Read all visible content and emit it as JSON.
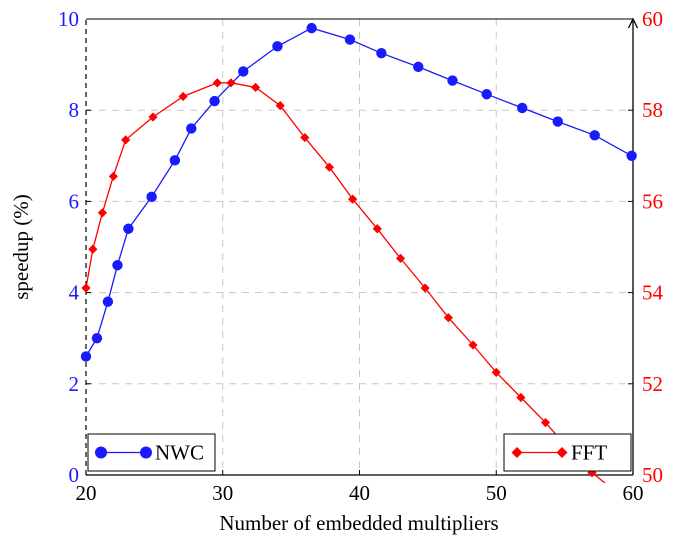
{
  "chart_data": {
    "type": "line",
    "xlabel": "Number of embedded multipliers",
    "ylabel_left": "speedup (%)",
    "ylabel_right": "",
    "xlim": [
      20,
      60
    ],
    "ylim_left": [
      0,
      10
    ],
    "ylim_right": [
      50,
      60
    ],
    "x_ticks": [
      20,
      30,
      40,
      50,
      60
    ],
    "y_ticks_left": [
      0,
      2,
      4,
      6,
      8,
      10
    ],
    "y_ticks_right": [
      50,
      52,
      54,
      56,
      58,
      60
    ],
    "grid": true,
    "colors": {
      "left_axis": "#1a1aff",
      "right_axis": "#ff0000"
    },
    "series": [
      {
        "name": "NWC",
        "axis": "left",
        "color": "#1a1aff",
        "marker": "circle",
        "legend": "bottom-left",
        "x": [
          20,
          20.8,
          21.6,
          22.3,
          23.1,
          24.8,
          26.5,
          27.7,
          29.4,
          31.5,
          34.0,
          36.5,
          39.3,
          41.6,
          44.3,
          46.8,
          49.3,
          51.9,
          54.5,
          57.2,
          59.9
        ],
        "y": [
          2.6,
          3.0,
          3.8,
          4.6,
          5.4,
          6.1,
          6.9,
          7.6,
          8.2,
          8.85,
          9.4,
          9.8,
          9.55,
          9.25,
          8.95,
          8.65,
          8.35,
          8.05,
          7.75,
          7.45,
          7.0
        ]
      },
      {
        "name": "FFT",
        "axis": "right",
        "color": "#ff0000",
        "marker": "diamond",
        "legend": "bottom-right",
        "x": [
          20,
          20.5,
          21.2,
          22.0,
          22.9,
          24.9,
          27.1,
          29.6,
          30.6,
          32.4,
          34.2,
          36.0,
          37.8,
          39.5,
          41.3,
          43.0,
          44.8,
          46.5,
          48.3,
          50.0,
          51.8,
          53.6,
          55.2,
          57.0,
          59.3
        ],
        "y": [
          54.1,
          54.95,
          55.75,
          56.55,
          57.35,
          57.85,
          58.3,
          58.6,
          58.6,
          58.5,
          58.1,
          57.4,
          56.75,
          56.05,
          55.4,
          54.75,
          54.1,
          53.45,
          52.85,
          52.25,
          51.7,
          51.15,
          50.6,
          50.05,
          49.5
        ]
      }
    ]
  }
}
